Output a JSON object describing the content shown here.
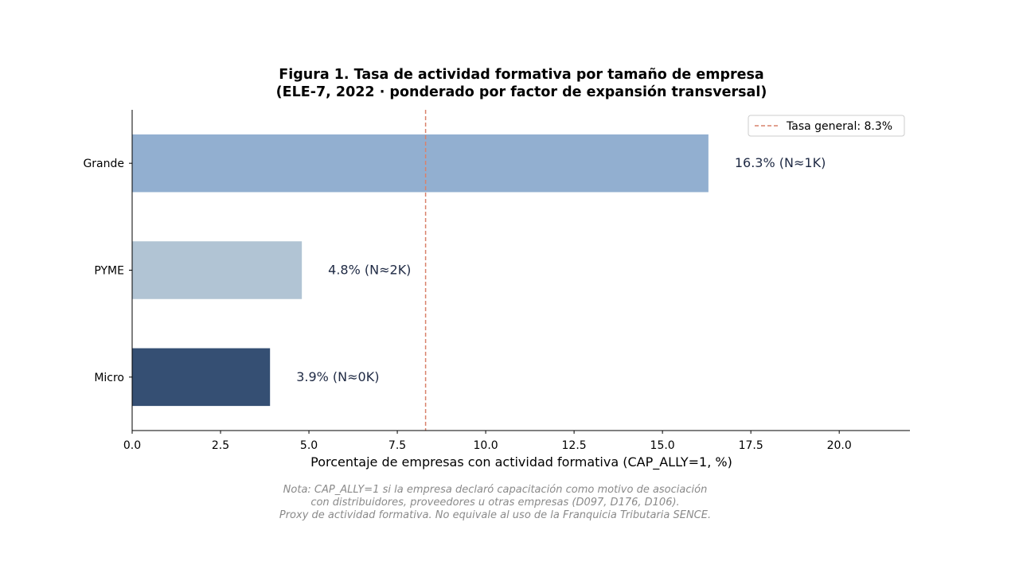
{
  "chart_data": {
    "type": "bar",
    "orientation": "horizontal",
    "title": "Figura 1. Tasa de actividad formativa por tamaño de empresa",
    "subtitle": "(ELE-7, 2022 · ponderado por factor de expansión transversal)",
    "xlabel": "Porcentaje de empresas con actividad formativa (CAP_ALLY=1, %)",
    "ylabel": "",
    "xlim": [
      0,
      22
    ],
    "xticks": [
      "0.0",
      "2.5",
      "5.0",
      "7.5",
      "10.0",
      "12.5",
      "15.0",
      "17.5",
      "20.0"
    ],
    "grid": false,
    "categories": [
      "Grande",
      "PYME",
      "Micro"
    ],
    "values": [
      16.3,
      4.8,
      3.9
    ],
    "bar_labels": [
      "16.3%  (N≈1K)",
      "4.8%  (N≈2K)",
      "3.9%  (N≈0K)"
    ],
    "bar_colors": [
      "#92afd0",
      "#b1c4d4",
      "#354f73"
    ],
    "reference_line": {
      "value": 8.3,
      "label": "Tasa general: 8.3%",
      "color": "#d9826c",
      "style": "dashed"
    },
    "legend": {
      "position": "top-right",
      "entries": [
        "Tasa general: 8.3%"
      ]
    },
    "note_lines": [
      "Nota: CAP_ALLY=1 si la empresa declaró capacitación como motivo de asociación",
      "con distribuidores, proveedores u otras empresas (D097, D176, D106).",
      "Proxy de actividad formativa. No equivale al uso de la Franquicia Tributaria SENCE."
    ]
  }
}
